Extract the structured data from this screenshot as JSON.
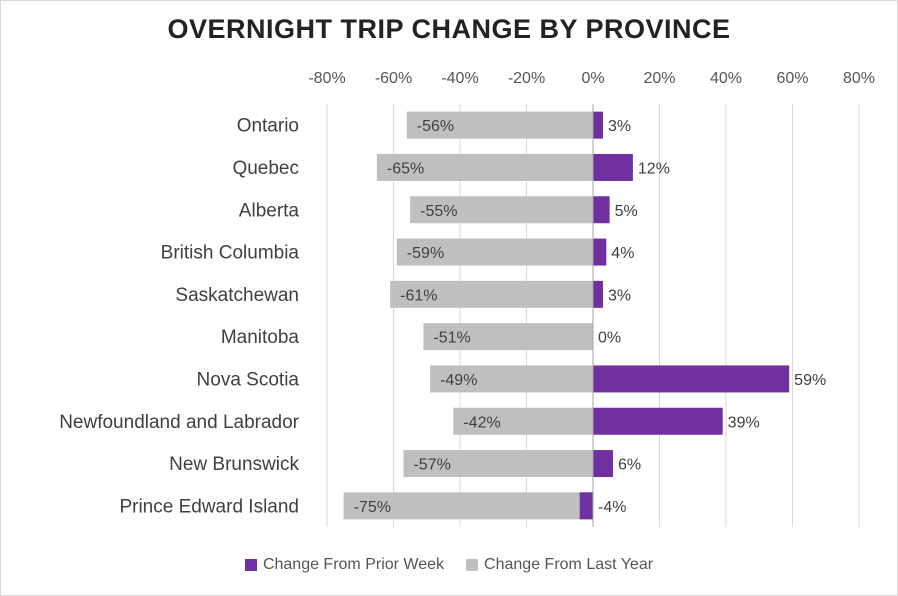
{
  "chart_data": {
    "type": "bar",
    "orientation": "horizontal",
    "title": "OVERNIGHT TRIP CHANGE BY PROVINCE",
    "xlim": [
      -80,
      80
    ],
    "x_ticks": [
      "-80%",
      "-60%",
      "-40%",
      "-20%",
      "0%",
      "20%",
      "40%",
      "60%",
      "80%"
    ],
    "categories": [
      "Ontario",
      "Quebec",
      "Alberta",
      "British Columbia",
      "Saskatchewan",
      "Manitoba",
      "Nova Scotia",
      "Newfoundland and Labrador",
      "New Brunswick",
      "Prince Edward Island"
    ],
    "series": [
      {
        "name": "Change From Last Year",
        "color": "#bfbfbf",
        "values": [
          -56,
          -65,
          -55,
          -59,
          -61,
          -51,
          -49,
          -42,
          -57,
          -75
        ],
        "labels": [
          "-56%",
          "-65%",
          "-55%",
          "-59%",
          "-61%",
          "-51%",
          "-49%",
          "-42%",
          "-57%",
          "-75%"
        ]
      },
      {
        "name": "Change From Prior Week",
        "color": "#7030a0",
        "values": [
          3,
          12,
          5,
          4,
          3,
          0,
          59,
          39,
          6,
          -4
        ],
        "labels": [
          "3%",
          "12%",
          "5%",
          "4%",
          "3%",
          "0%",
          "59%",
          "39%",
          "6%",
          "-4%"
        ]
      }
    ],
    "legend": {
      "position": "bottom",
      "order": [
        "Change From Prior Week",
        "Change From Last Year"
      ]
    },
    "grid": true
  }
}
